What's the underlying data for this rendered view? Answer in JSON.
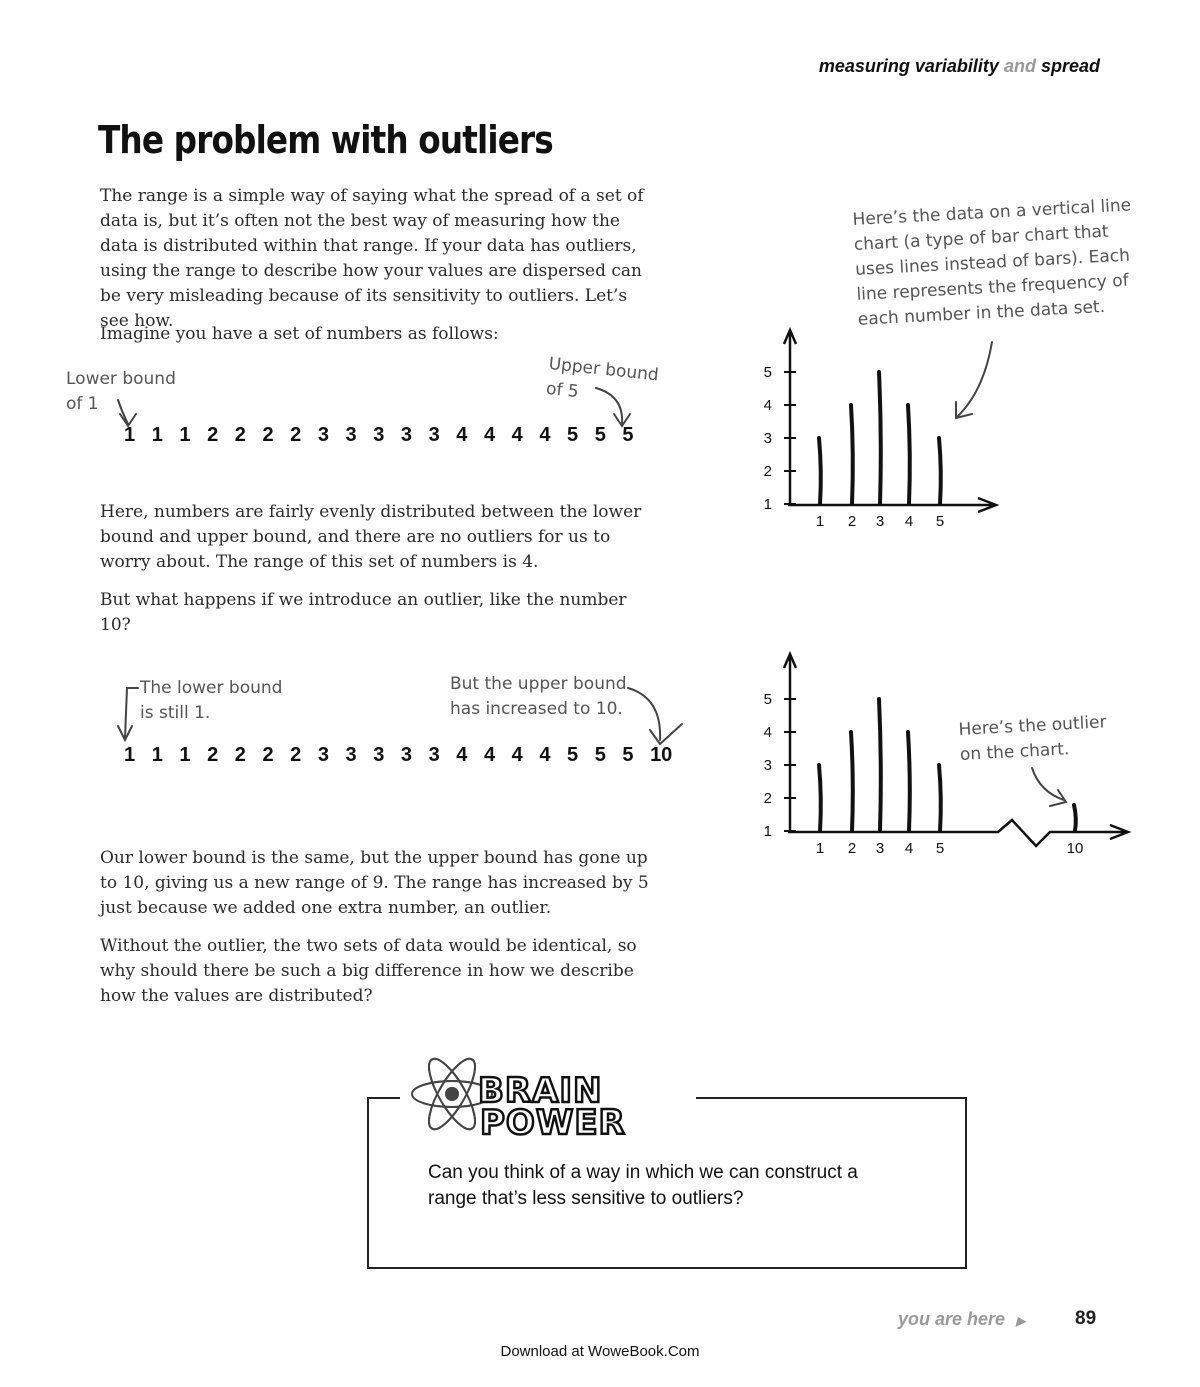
{
  "header": {
    "running_head_part1": "measuring variability",
    "running_head_and": "and",
    "running_head_part2": "spread"
  },
  "title": "The problem with outliers",
  "paragraphs": {
    "p1": "The range is a simple way of saying what the spread of a set of data is, but it’s often not the best way of measuring how the data is distributed within that range. If your data has outliers, using the range to describe how your values are dispersed can be very misleading because of its sensitivity to outliers. Let’s see how.",
    "p2": "Imagine you have a set of numbers as follows:",
    "p3": "Here, numbers are fairly evenly distributed between the lower bound and upper bound, and there are no outliers for us to worry about. The range of this set of numbers is 4.",
    "p4": "But what happens if we introduce an outlier, like the number 10?",
    "p5": "Our lower bound is the same, but the upper bound has gone up to 10, giving us a new range of 9. The range has increased by 5 just because we added one extra number, an outlier.",
    "p6": "Without the outlier, the two sets of data would be identical, so why should there be such a big difference in how we describe how the values are distributed?"
  },
  "annotations": {
    "lower1_l1": "Lower bound",
    "lower1_l2": "of 1",
    "upper1_l1": "Upper bound",
    "upper1_l2": "of 5",
    "lower2_l1": "The lower bound",
    "lower2_l2": "is still 1.",
    "upper2_l1": "But the upper bound",
    "upper2_l2": "has increased to 10.",
    "chart_note_l1": "Here’s the data on a vertical line",
    "chart_note_l2": "chart (a type of bar chart that",
    "chart_note_l3": "uses lines instead of bars). Each",
    "chart_note_l4": "line represents the frequency of",
    "chart_note_l5": "each number in the data set.",
    "outlier_note_l1": "Here’s the outlier",
    "outlier_note_l2": "on the chart."
  },
  "dataset1": [
    "1",
    "1",
    "1",
    "2",
    "2",
    "2",
    "2",
    "3",
    "3",
    "3",
    "3",
    "3",
    "4",
    "4",
    "4",
    "4",
    "5",
    "5",
    "5"
  ],
  "dataset2": [
    "1",
    "1",
    "1",
    "2",
    "2",
    "2",
    "2",
    "3",
    "3",
    "3",
    "3",
    "3",
    "4",
    "4",
    "4",
    "4",
    "5",
    "5",
    "5",
    "10"
  ],
  "chart_data": [
    {
      "type": "bar",
      "categories": [
        "1",
        "2",
        "3",
        "4",
        "5"
      ],
      "values": [
        3,
        4,
        5,
        4,
        3
      ],
      "y_ticks": [
        "1",
        "2",
        "3",
        "4",
        "5"
      ],
      "ylim": [
        1,
        5
      ]
    },
    {
      "type": "bar",
      "categories": [
        "1",
        "2",
        "3",
        "4",
        "5",
        "10"
      ],
      "values": [
        3,
        4,
        5,
        4,
        3,
        1
      ],
      "y_ticks": [
        "1",
        "2",
        "3",
        "4",
        "5"
      ],
      "ylim": [
        1,
        5
      ],
      "axis_break": true
    }
  ],
  "brain_power": {
    "logo_text_l1": "BRAIN",
    "logo_text_l2": "POWER",
    "question": "Can you think of a way in which we can construct a range that’s less sensitive to outliers?"
  },
  "footer": {
    "you_are_here": "you are here",
    "page_number": "89",
    "download": "Download at WoweBook.Com"
  }
}
